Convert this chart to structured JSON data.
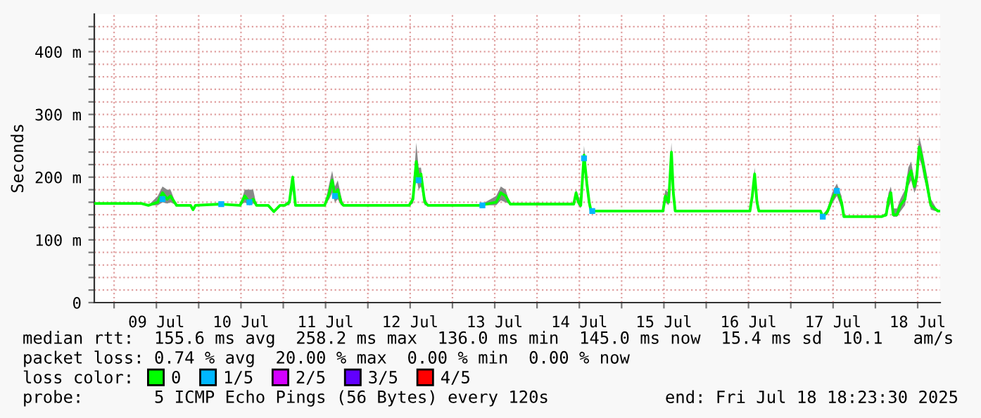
{
  "chart_data": {
    "type": "line",
    "ylabel": "Seconds",
    "legend_title": "loss color:",
    "legend": "bottom",
    "grid": true,
    "xlim": [
      "2025-07-08T18:23",
      "2025-07-18T18:23"
    ],
    "xticks": [
      {
        "value": "2025-07-09T00:00",
        "label": null
      },
      {
        "value": "2025-07-09T12:00",
        "label": "09 Jul"
      },
      {
        "value": "2025-07-10T00:00",
        "label": null
      },
      {
        "value": "2025-07-10T12:00",
        "label": "10 Jul"
      },
      {
        "value": "2025-07-11T00:00",
        "label": null
      },
      {
        "value": "2025-07-11T12:00",
        "label": "11 Jul"
      },
      {
        "value": "2025-07-12T00:00",
        "label": null
      },
      {
        "value": "2025-07-12T12:00",
        "label": "12 Jul"
      },
      {
        "value": "2025-07-13T00:00",
        "label": null
      },
      {
        "value": "2025-07-13T12:00",
        "label": "13 Jul"
      },
      {
        "value": "2025-07-14T00:00",
        "label": null
      },
      {
        "value": "2025-07-14T12:00",
        "label": "14 Jul"
      },
      {
        "value": "2025-07-15T00:00",
        "label": null
      },
      {
        "value": "2025-07-15T12:00",
        "label": "15 Jul"
      },
      {
        "value": "2025-07-16T00:00",
        "label": null
      },
      {
        "value": "2025-07-16T12:00",
        "label": "16 Jul"
      },
      {
        "value": "2025-07-17T00:00",
        "label": null
      },
      {
        "value": "2025-07-17T12:00",
        "label": "17 Jul"
      },
      {
        "value": "2025-07-18T00:00",
        "label": null
      },
      {
        "value": "2025-07-18T12:00",
        "label": "18 Jul"
      }
    ],
    "ylim": [
      0,
      460
    ],
    "yticks": [
      0,
      {
        "value": 20,
        "label": null
      },
      {
        "value": 40,
        "label": null
      },
      {
        "value": 60,
        "label": null
      },
      {
        "value": 80,
        "label": null
      },
      {
        "value": 100,
        "label": "100 m"
      },
      {
        "value": 120,
        "label": null
      },
      {
        "value": 140,
        "label": null
      },
      {
        "value": 160,
        "label": null
      },
      {
        "value": 180,
        "label": null
      },
      {
        "value": 200,
        "label": "200 m"
      },
      {
        "value": 220,
        "label": null
      },
      {
        "value": 240,
        "label": null
      },
      {
        "value": 260,
        "label": null
      },
      {
        "value": 280,
        "label": null
      },
      {
        "value": 300,
        "label": "300 m"
      },
      {
        "value": 320,
        "label": null
      },
      {
        "value": 340,
        "label": null
      },
      {
        "value": 360,
        "label": null
      },
      {
        "value": 380,
        "label": null
      },
      {
        "value": 400,
        "label": "400 m"
      },
      {
        "value": 420,
        "label": null
      },
      {
        "value": 440,
        "label": null
      }
    ],
    "series": [
      {
        "name": "0",
        "color": "#00ff00",
        "x": [
          "2025-07-08T18:24",
          "2025-07-09T07:44",
          "2025-07-09T09:44",
          "2025-07-09T12:24",
          "2025-07-09T13:44",
          "2025-07-09T15:04",
          "2025-07-09T16:00",
          "2025-07-09T17:44",
          "2025-07-09T21:44",
          "2025-07-09T22:24",
          "2025-07-09T23:04",
          "2025-07-10T06:24",
          "2025-07-10T11:44",
          "2025-07-10T13:04",
          "2025-07-10T14:24",
          "2025-07-10T15:28",
          "2025-07-10T16:24",
          "2025-07-10T19:44",
          "2025-07-10T21:20",
          "2025-07-10T23:04",
          "2025-07-11T00:24",
          "2025-07-11T01:44",
          "2025-07-11T02:40",
          "2025-07-11T03:28",
          "2025-07-11T11:44",
          "2025-07-11T13:04",
          "2025-07-11T13:52",
          "2025-07-11T14:40",
          "2025-07-11T15:28",
          "2025-07-11T16:24",
          "2025-07-11T17:04",
          "2025-07-12T11:44",
          "2025-07-12T12:48",
          "2025-07-12T13:44",
          "2025-07-12T14:24",
          "2025-07-12T15:04",
          "2025-07-12T16:08",
          "2025-07-12T17:04",
          "2025-07-13T07:44",
          "2025-07-13T12:24",
          "2025-07-13T13:44",
          "2025-07-13T15:04",
          "2025-07-13T16:24",
          "2025-07-14T03:28",
          "2025-07-14T10:24",
          "2025-07-14T11:04",
          "2025-07-14T11:44",
          "2025-07-14T12:24",
          "2025-07-14T13:20",
          "2025-07-14T14:08",
          "2025-07-14T14:48",
          "2025-07-14T15:20",
          "2025-07-15T11:44",
          "2025-07-15T12:24",
          "2025-07-15T13:20",
          "2025-07-15T14:08",
          "2025-07-15T14:40",
          "2025-07-15T15:12",
          "2025-07-16T12:24",
          "2025-07-16T13:04",
          "2025-07-16T13:44",
          "2025-07-16T14:24",
          "2025-07-16T14:56",
          "2025-07-17T08:24",
          "2025-07-17T09:04",
          "2025-07-17T10:24",
          "2025-07-17T11:44",
          "2025-07-17T13:04",
          "2025-07-17T14:24",
          "2025-07-17T15:04",
          "2025-07-18T01:44",
          "2025-07-18T03:04",
          "2025-07-18T03:44",
          "2025-07-18T04:24",
          "2025-07-18T05:04",
          "2025-07-18T06:08",
          "2025-07-18T07:04",
          "2025-07-18T08:24",
          "2025-07-18T09:20",
          "2025-07-18T10:08",
          "2025-07-18T11:04",
          "2025-07-18T11:44",
          "2025-07-18T12:24",
          "2025-07-18T13:04",
          "2025-07-18T13:44",
          "2025-07-18T14:24",
          "2025-07-18T15:04",
          "2025-07-18T15:44",
          "2025-07-18T16:48",
          "2025-07-18T17:44",
          "2025-07-18T18:23"
        ],
        "values": [
          158,
          158,
          155,
          160,
          175,
          165,
          170,
          155,
          155,
          148,
          155,
          157,
          155,
          170,
          160,
          165,
          155,
          155,
          145,
          155,
          155,
          160,
          200,
          155,
          155,
          175,
          195,
          170,
          180,
          160,
          155,
          155,
          165,
          225,
          195,
          205,
          160,
          155,
          155,
          160,
          175,
          170,
          157,
          157,
          157,
          175,
          160,
          155,
          235,
          190,
          160,
          146,
          146,
          170,
          160,
          240,
          175,
          146,
          146,
          170,
          205,
          160,
          146,
          146,
          137,
          145,
          165,
          180,
          160,
          137,
          137,
          140,
          165,
          175,
          140,
          140,
          155,
          165,
          200,
          210,
          185,
          200,
          248,
          235,
          215,
          195,
          175,
          155,
          150,
          146,
          146
        ],
        "lower": [
          158,
          158,
          155,
          155,
          160,
          158,
          160,
          155,
          155,
          148,
          155,
          157,
          155,
          160,
          155,
          158,
          155,
          155,
          145,
          155,
          155,
          155,
          180,
          155,
          155,
          165,
          175,
          160,
          165,
          155,
          155,
          155,
          158,
          200,
          180,
          185,
          155,
          155,
          155,
          155,
          163,
          160,
          157,
          157,
          157,
          165,
          155,
          150,
          215,
          175,
          150,
          146,
          146,
          160,
          155,
          220,
          160,
          146,
          146,
          160,
          190,
          150,
          146,
          146,
          137,
          140,
          158,
          170,
          150,
          137,
          137,
          137,
          150,
          160,
          137,
          137,
          145,
          155,
          185,
          195,
          175,
          185,
          230,
          220,
          200,
          185,
          165,
          148,
          146,
          146,
          146
        ],
        "upper": [
          158,
          158,
          155,
          170,
          185,
          180,
          180,
          155,
          155,
          148,
          155,
          157,
          155,
          180,
          180,
          180,
          155,
          155,
          145,
          155,
          155,
          165,
          205,
          155,
          155,
          190,
          210,
          185,
          195,
          170,
          155,
          155,
          175,
          255,
          215,
          215,
          170,
          155,
          155,
          170,
          185,
          180,
          157,
          157,
          157,
          180,
          170,
          160,
          250,
          200,
          165,
          146,
          146,
          180,
          175,
          255,
          190,
          146,
          146,
          180,
          215,
          170,
          146,
          146,
          140,
          150,
          175,
          190,
          170,
          137,
          137,
          145,
          175,
          185,
          150,
          150,
          165,
          180,
          215,
          225,
          195,
          215,
          265,
          250,
          230,
          210,
          190,
          165,
          155,
          146,
          146
        ]
      },
      {
        "name": "1/5",
        "color": "#00b7ff",
        "type": "scatter",
        "marker": "square",
        "x": [
          "2025-07-09T13:44",
          "2025-07-10T06:24",
          "2025-07-10T14:24",
          "2025-07-11T14:40",
          "2025-07-12T14:24",
          "2025-07-13T08:30",
          "2025-07-14T13:20",
          "2025-07-14T15:40",
          "2025-07-17T09:04",
          "2025-07-17T13:04"
        ],
        "values": [
          165,
          157,
          160,
          170,
          195,
          155,
          230,
          146,
          137,
          178
        ]
      },
      {
        "name": "2/5",
        "color": "#d400ff",
        "type": "scatter",
        "marker": "square"
      },
      {
        "name": "3/5",
        "color": "#6100ff",
        "type": "scatter",
        "marker": "square"
      },
      {
        "name": "4/5",
        "color": "#ff0000",
        "type": "scatter",
        "marker": "square"
      }
    ],
    "annotations": [
      "median rtt:  155.6 ms avg  258.2 ms max  136.0 ms min  145.0 ms now  15.4 ms sd  10.1   am/s",
      "packet loss: 0.74 % avg  20.00 % max  0.00 % min  0.00 % now",
      "probe:       5 ICMP Echo Pings (56 Bytes) every 120s",
      "end: Fri Jul 18 18:23:30 2025"
    ]
  }
}
